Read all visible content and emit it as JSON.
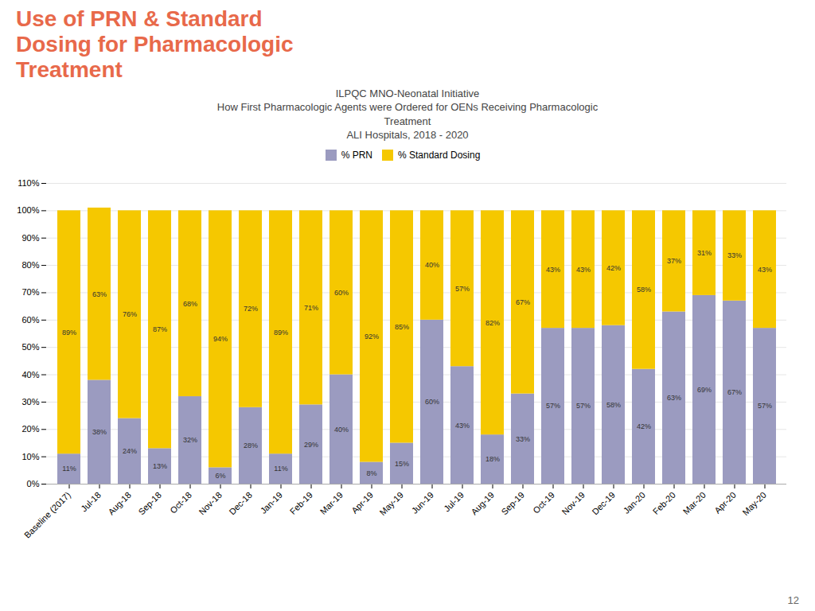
{
  "chart_data": {
    "type": "bar",
    "stacked": true,
    "title": [
      "Use of PRN & Standard",
      "Dosing for Pharmacologic",
      "Treatment"
    ],
    "subtitle": [
      "ILPQC MNO-Neonatal Initiative",
      "How First Pharmacologic Agents were Ordered for OENs Receiving Pharmacologic",
      "Treatment",
      "ALI Hospitals, 2018 - 2020"
    ],
    "annotations": [
      "12"
    ],
    "categories": [
      "Baseline (2017)",
      "Jul-18",
      "Aug-18",
      "Sep-18",
      "Oct-18",
      "Nov-18",
      "Dec-18",
      "Jan-19",
      "Feb-19",
      "Mar-19",
      "Apr-19",
      "May-19",
      "Jun-19",
      "Jul-19",
      "Aug-19",
      "Sep-19",
      "Oct-19",
      "Nov-19",
      "Dec-19",
      "Jan-20",
      "Feb-20",
      "Mar-20",
      "Apr-20",
      "May-20"
    ],
    "series": [
      {
        "name": "% PRN",
        "color": "#9b9bc0",
        "values": [
          11,
          38,
          24,
          13,
          32,
          6,
          28,
          11,
          29,
          40,
          8,
          15,
          60,
          43,
          18,
          33,
          57,
          57,
          58,
          42,
          63,
          69,
          67,
          57
        ],
        "value_labels": [
          "11%",
          "38%",
          "24%",
          "13%",
          "32%",
          "6%",
          "28%",
          "11%",
          "29%",
          "40%",
          "8%",
          "15%",
          "60%",
          "43%",
          "18%",
          "33%",
          "57%",
          "57%",
          "58%",
          "42%",
          "63%",
          "69%",
          "67%",
          "57%"
        ]
      },
      {
        "name": "% Standard Dosing",
        "color": "#f5c800",
        "values": [
          89,
          63,
          76,
          87,
          68,
          94,
          72,
          89,
          71,
          60,
          92,
          85,
          40,
          57,
          82,
          67,
          43,
          43,
          42,
          58,
          37,
          31,
          33,
          43
        ],
        "value_labels": [
          "89%",
          "63%",
          "76%",
          "87%",
          "68%",
          "94%",
          "72%",
          "89%",
          "71%",
          "60%",
          "92%",
          "85%",
          "40%",
          "57%",
          "82%",
          "67%",
          "43%",
          "43%",
          "42%",
          "58%",
          "37%",
          "31%",
          "33%",
          "43%"
        ]
      }
    ],
    "ylim": [
      0,
      110
    ],
    "yticks": [
      {
        "value": 0,
        "label": "0%"
      },
      {
        "value": 10,
        "label": "10%"
      },
      {
        "value": 20,
        "label": "20%"
      },
      {
        "value": 30,
        "label": "30%"
      },
      {
        "value": 40,
        "label": "40%"
      },
      {
        "value": 50,
        "label": "50%"
      },
      {
        "value": 60,
        "label": "60%"
      },
      {
        "value": 70,
        "label": "70%"
      },
      {
        "value": 80,
        "label": "80%"
      },
      {
        "value": 90,
        "label": "90%"
      },
      {
        "value": 100,
        "label": "100%"
      },
      {
        "value": 110,
        "label": "110%"
      }
    ],
    "grid": true,
    "legend": "top",
    "data_labels": true
  }
}
